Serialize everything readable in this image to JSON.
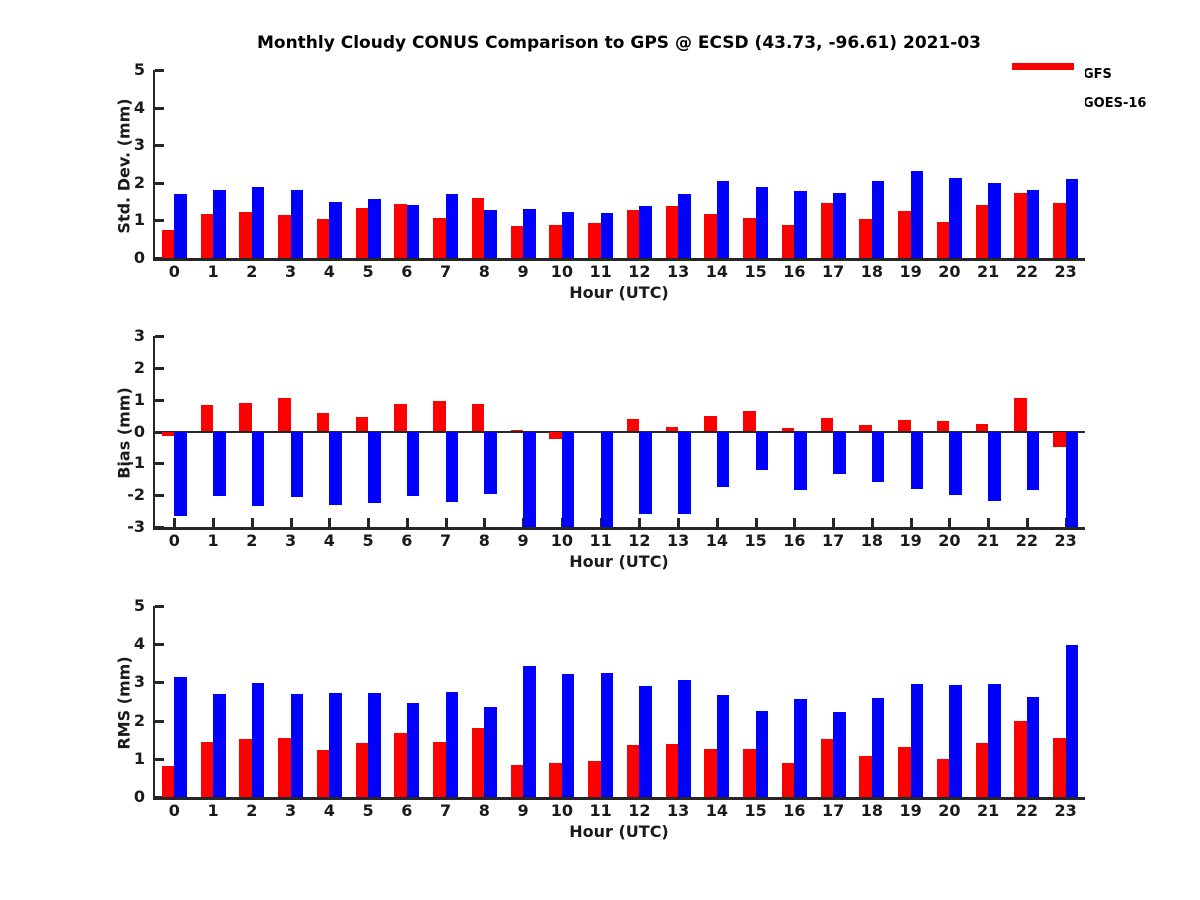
{
  "title": "Monthly Cloudy CONUS Comparison to GPS @ ECSD (43.73, -96.61) 2021-03",
  "legend": {
    "items": [
      {
        "label": "GFS",
        "color": "#ff0000"
      },
      {
        "label": "GOES-16",
        "color": "#0000ff"
      }
    ]
  },
  "colors": {
    "gfs": "#ff0000",
    "goes16": "#0000ff",
    "axis": "#262626",
    "background": "#ffffff"
  },
  "chart_data": [
    {
      "type": "bar",
      "title": "Monthly Cloudy CONUS Comparison to GPS @ ECSD (43.73, -96.61) 2021-03",
      "xlabel": "Hour (UTC)",
      "ylabel": "Std. Dev. (mm)",
      "ylim": [
        0,
        5
      ],
      "yticks": [
        0,
        1,
        2,
        3,
        4,
        5
      ],
      "grid": false,
      "legend_position": "top-right",
      "categories": [
        "0",
        "1",
        "2",
        "3",
        "4",
        "5",
        "6",
        "7",
        "8",
        "9",
        "10",
        "11",
        "12",
        "13",
        "14",
        "15",
        "16",
        "17",
        "18",
        "19",
        "20",
        "21",
        "22",
        "23"
      ],
      "series": [
        {
          "name": "GFS",
          "color": "#ff0000",
          "values": [
            0.75,
            1.18,
            1.22,
            1.15,
            1.05,
            1.32,
            1.43,
            1.07,
            1.6,
            0.84,
            0.87,
            0.94,
            1.27,
            1.38,
            1.17,
            1.07,
            0.88,
            1.47,
            1.05,
            1.25,
            0.97,
            1.42,
            1.72,
            1.45
          ]
        },
        {
          "name": "GOES-16",
          "color": "#0000ff",
          "values": [
            1.7,
            1.8,
            1.9,
            1.8,
            1.49,
            1.58,
            1.4,
            1.71,
            1.27,
            1.3,
            1.23,
            1.2,
            1.38,
            1.7,
            2.06,
            1.89,
            1.77,
            1.73,
            2.04,
            2.31,
            2.12,
            1.99,
            1.82,
            2.11
          ]
        }
      ]
    },
    {
      "type": "bar",
      "title": "",
      "xlabel": "Hour (UTC)",
      "ylabel": "Bias (mm)",
      "ylim": [
        -3,
        3
      ],
      "yticks": [
        3,
        2,
        1,
        0,
        -1,
        -2,
        -3
      ],
      "grid": false,
      "categories": [
        "0",
        "1",
        "2",
        "3",
        "4",
        "5",
        "6",
        "7",
        "8",
        "9",
        "10",
        "11",
        "12",
        "13",
        "14",
        "15",
        "16",
        "17",
        "18",
        "19",
        "20",
        "21",
        "22",
        "23"
      ],
      "series": [
        {
          "name": "GFS",
          "color": "#ff0000",
          "values": [
            -0.15,
            0.82,
            0.88,
            1.05,
            0.57,
            0.47,
            0.85,
            0.96,
            0.85,
            0.05,
            -0.22,
            0.0,
            0.4,
            0.14,
            0.48,
            0.63,
            0.12,
            0.42,
            0.2,
            0.36,
            0.33,
            0.25,
            1.06,
            -0.48
          ]
        },
        {
          "name": "GOES-16",
          "color": "#0000ff",
          "values": [
            -2.65,
            -2.02,
            -2.35,
            -2.05,
            -2.32,
            -2.25,
            -2.02,
            -2.2,
            -1.95,
            -3.0,
            -3.0,
            -3.0,
            -2.58,
            -2.6,
            -1.75,
            -1.2,
            -1.85,
            -1.35,
            -1.58,
            -1.8,
            -2.0,
            -2.18,
            -1.85,
            -3.0
          ]
        }
      ]
    },
    {
      "type": "bar",
      "title": "",
      "xlabel": "Hour (UTC)",
      "ylabel": "RMS (mm)",
      "ylim": [
        0,
        5
      ],
      "yticks": [
        0,
        1,
        2,
        3,
        4,
        5
      ],
      "grid": false,
      "categories": [
        "0",
        "1",
        "2",
        "3",
        "4",
        "5",
        "6",
        "7",
        "8",
        "9",
        "10",
        "11",
        "12",
        "13",
        "14",
        "15",
        "16",
        "17",
        "18",
        "19",
        "20",
        "21",
        "22",
        "23"
      ],
      "series": [
        {
          "name": "GFS",
          "color": "#ff0000",
          "values": [
            0.8,
            1.45,
            1.52,
            1.55,
            1.22,
            1.42,
            1.67,
            1.45,
            1.8,
            0.85,
            0.9,
            0.95,
            1.35,
            1.4,
            1.26,
            1.26,
            0.9,
            1.52,
            1.08,
            1.3,
            1.0,
            1.42,
            2.0,
            1.55
          ]
        },
        {
          "name": "GOES-16",
          "color": "#0000ff",
          "values": [
            3.15,
            2.7,
            2.98,
            2.7,
            2.72,
            2.72,
            2.45,
            2.75,
            2.35,
            3.42,
            3.22,
            3.25,
            2.9,
            3.06,
            2.68,
            2.25,
            2.57,
            2.22,
            2.6,
            2.95,
            2.93,
            2.96,
            2.62,
            3.97
          ]
        }
      ]
    }
  ]
}
